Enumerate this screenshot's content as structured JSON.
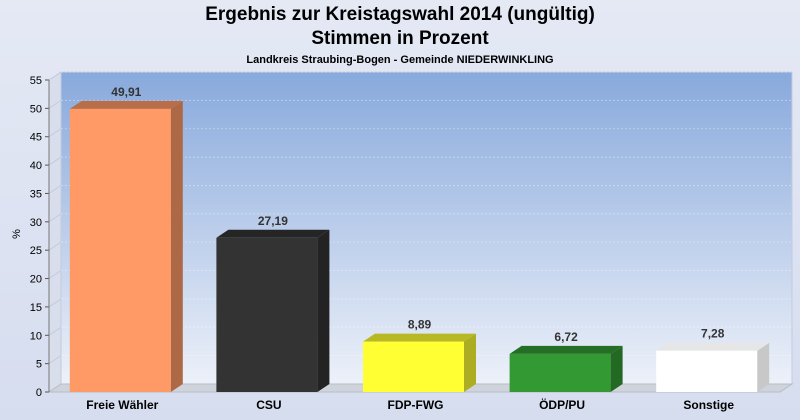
{
  "header": {
    "title_line1": "Ergebnis zur Kreistagswahl 2014 (ungültig)",
    "title_line2": "Stimmen in Prozent",
    "subtitle": "Landkreis Straubing-Bogen - Gemeinde NIEDERWINKLING"
  },
  "chart_data": {
    "type": "bar",
    "title": "Ergebnis zur Kreistagswahl 2014 (ungültig)",
    "subtitle": "Stimmen in Prozent",
    "caption": "Landkreis Straubing-Bogen - Gemeinde NIEDERWINKLING",
    "xlabel": "",
    "ylabel": "%",
    "ylim": [
      0,
      55
    ],
    "yticks": [
      0,
      5,
      10,
      15,
      20,
      25,
      30,
      35,
      40,
      45,
      50,
      55
    ],
    "grid": true,
    "categories": [
      "Freie Wähler",
      "CSU",
      "FDP-FWG",
      "ÖDP/PU",
      "Sonstige"
    ],
    "values": [
      49.91,
      27.19,
      8.89,
      6.72,
      7.28
    ],
    "value_labels": [
      "49,91",
      "27,19",
      "8,89",
      "6,72",
      "7,28"
    ],
    "colors": [
      "#ff9966",
      "#333333",
      "#ffff33",
      "#339933",
      "#ffffff"
    ]
  }
}
